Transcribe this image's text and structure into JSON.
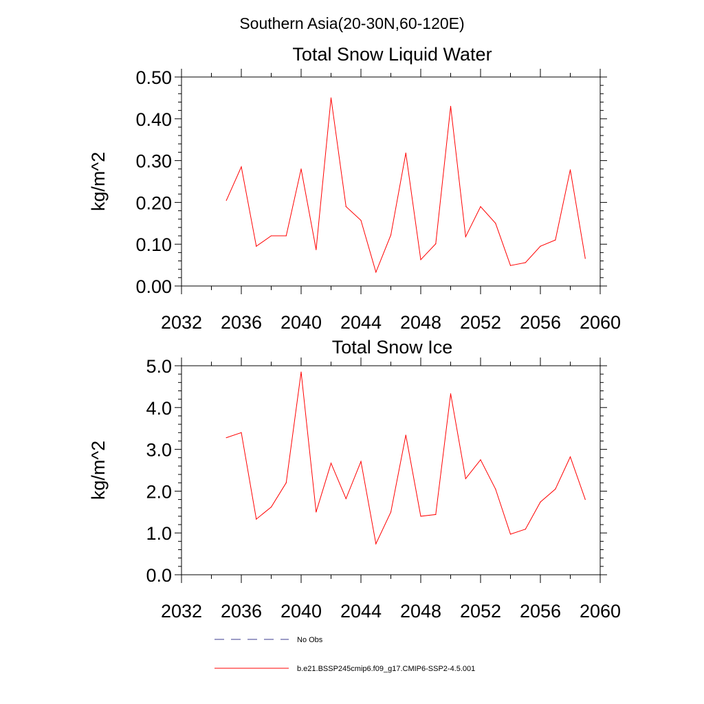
{
  "suptitle": "Southern Asia(20-30N,60-120E)",
  "series_color": "#ff0000",
  "legend": {
    "no_obs_label": "No Obs",
    "no_obs_color": "#3a3a8c",
    "model_label": "b.e21.BSSP245cmip6.f09_g17.CMIP6-SSP2-4.5.001",
    "model_color": "#ff0000"
  },
  "chart_data": [
    {
      "type": "line",
      "title": "Total Snow Liquid Water",
      "xlabel": "",
      "ylabel": "kg/m^2",
      "xlim": [
        2032,
        2060
      ],
      "ylim": [
        0,
        0.5
      ],
      "xticks": [
        2032,
        2036,
        2040,
        2044,
        2048,
        2052,
        2056,
        2060
      ],
      "xtick_labels": [
        "2032",
        "2036",
        "2040",
        "2044",
        "2048",
        "2052",
        "2056",
        "2060"
      ],
      "yticks": [
        0,
        0.1,
        0.2,
        0.3,
        0.4,
        0.5
      ],
      "ytick_labels": [
        "0.00",
        "0.10",
        "0.20",
        "0.30",
        "0.40",
        "0.50"
      ],
      "grid": false,
      "series": [
        {
          "x": [
            2035,
            2036,
            2037,
            2038,
            2039,
            2040,
            2041,
            2042,
            2043,
            2044,
            2045,
            2046,
            2047,
            2048,
            2049,
            2050,
            2051,
            2052,
            2053,
            2054,
            2055,
            2056,
            2057,
            2058,
            2059
          ],
          "values": [
            0.205,
            0.285,
            0.095,
            0.12,
            0.12,
            0.28,
            0.087,
            0.45,
            0.19,
            0.157,
            0.033,
            0.122,
            0.318,
            0.063,
            0.101,
            0.43,
            0.118,
            0.19,
            0.15,
            0.049,
            0.056,
            0.095,
            0.11,
            0.278,
            0.066
          ]
        }
      ]
    },
    {
      "type": "line",
      "title": "Total Snow Ice",
      "xlabel": "",
      "ylabel": "kg/m^2",
      "xlim": [
        2032,
        2060
      ],
      "ylim": [
        0,
        5
      ],
      "xticks": [
        2032,
        2036,
        2040,
        2044,
        2048,
        2052,
        2056,
        2060
      ],
      "xtick_labels": [
        "2032",
        "2036",
        "2040",
        "2044",
        "2048",
        "2052",
        "2056",
        "2060"
      ],
      "yticks": [
        0,
        1,
        2,
        3,
        4,
        5
      ],
      "ytick_labels": [
        "0.0",
        "1.0",
        "2.0",
        "3.0",
        "4.0",
        "5.0"
      ],
      "grid": false,
      "series": [
        {
          "x": [
            2035,
            2036,
            2037,
            2038,
            2039,
            2040,
            2041,
            2042,
            2043,
            2044,
            2045,
            2046,
            2047,
            2048,
            2049,
            2050,
            2051,
            2052,
            2053,
            2054,
            2055,
            2056,
            2057,
            2058,
            2059
          ],
          "values": [
            3.28,
            3.4,
            1.33,
            1.62,
            2.2,
            4.85,
            1.5,
            2.67,
            1.82,
            2.71,
            0.74,
            1.5,
            3.34,
            1.4,
            1.44,
            4.33,
            2.3,
            2.75,
            2.05,
            0.97,
            1.09,
            1.74,
            2.05,
            2.82,
            1.8
          ]
        }
      ]
    }
  ]
}
